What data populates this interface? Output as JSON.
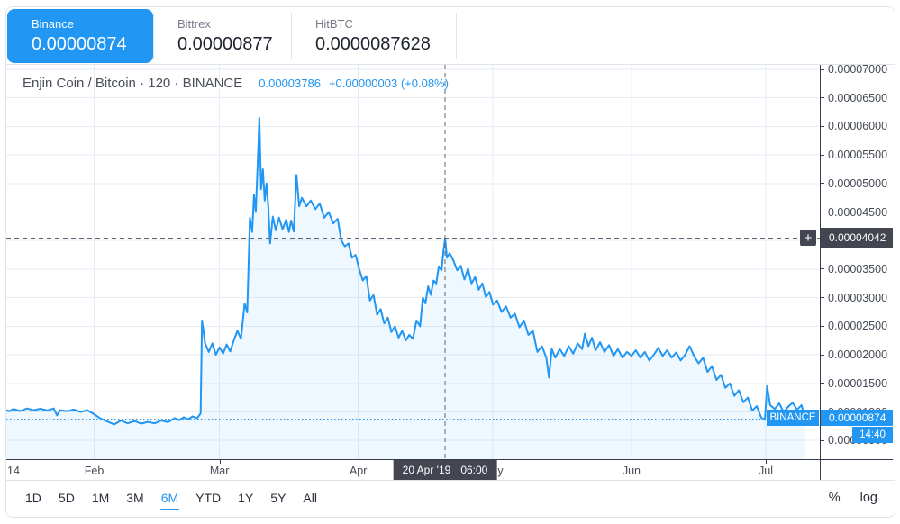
{
  "tabs": [
    {
      "name": "Binance",
      "price": "0.00000874",
      "active": true
    },
    {
      "name": "Bittrex",
      "price": "0.00000877",
      "active": false
    },
    {
      "name": "HitBTC",
      "price": "0.0000087628",
      "active": false
    }
  ],
  "header": {
    "title": "Enjin Coin / Bitcoin · 120 · BINANCE",
    "last_price": "0.00003786",
    "change": "+0.00000003 (+0.08%)"
  },
  "crosshair": {
    "price": "0.00004042",
    "date": "20 Apr '19",
    "time": "06:00",
    "plus": "+"
  },
  "last": {
    "exchange": "BINANCE",
    "price": "0.00000874",
    "time": "14:40"
  },
  "toolbar": {
    "ranges": [
      "1D",
      "5D",
      "1M",
      "3M",
      "6M",
      "YTD",
      "1Y",
      "5Y",
      "All"
    ],
    "active_range": "6M",
    "percent": "%",
    "log": "log"
  },
  "colors": {
    "accent_blue": "#2196f3",
    "area_fill": "rgba(33,150,243,0.07)",
    "grid": "#e6edf5",
    "crosshair_dash": "#62656e",
    "crosshair_label_bg": "#434651",
    "axis_line": "#363c4e",
    "axis_text": "#454a56"
  },
  "chart_data": {
    "type": "area",
    "title": "Enjin Coin / Bitcoin, 120-minute bars, BINANCE",
    "x_unit": "days since Jan 14 2019",
    "y_unit": "BTC (values stored in 1e-8 BTC)",
    "ylim_sats": [
      170,
      7080
    ],
    "yticks_sats": [
      7000,
      6500,
      6000,
      5500,
      5000,
      4500,
      4000,
      3500,
      3000,
      2500,
      2000,
      1500,
      1000,
      500
    ],
    "first_tick": {
      "label": "14",
      "day": 0
    },
    "months": [
      {
        "label": "Feb",
        "day": 18
      },
      {
        "label": "Mar",
        "day": 46
      },
      {
        "label": "Apr",
        "day": 77
      },
      {
        "label": "May",
        "day": 107
      },
      {
        "label": "Jun",
        "day": 138
      },
      {
        "label": "Jul",
        "day": 168
      }
    ],
    "current_price_sats": 874,
    "crosshair_point": {
      "day": 96.4,
      "sats": 4042
    },
    "points": [
      [
        -1.6,
        1030
      ],
      [
        -1,
        1010
      ],
      [
        0,
        1050
      ],
      [
        1.5,
        1015
      ],
      [
        3,
        1060
      ],
      [
        4.5,
        1030
      ],
      [
        6,
        1055
      ],
      [
        7.5,
        1025
      ],
      [
        9,
        1060
      ],
      [
        9.7,
        940
      ],
      [
        10.4,
        1030
      ],
      [
        12,
        1010
      ],
      [
        13.5,
        1040
      ],
      [
        15,
        1000
      ],
      [
        16.5,
        1030
      ],
      [
        18,
        960
      ],
      [
        19.5,
        880
      ],
      [
        21,
        830
      ],
      [
        22.5,
        780
      ],
      [
        24,
        850
      ],
      [
        25.5,
        800
      ],
      [
        27,
        840
      ],
      [
        28.5,
        795
      ],
      [
        30,
        825
      ],
      [
        31.5,
        800
      ],
      [
        33,
        850
      ],
      [
        34.5,
        820
      ],
      [
        36,
        890
      ],
      [
        37,
        855
      ],
      [
        38,
        905
      ],
      [
        39,
        870
      ],
      [
        40,
        920
      ],
      [
        41,
        890
      ],
      [
        41.8,
        975
      ],
      [
        42.1,
        2600
      ],
      [
        42.8,
        2200
      ],
      [
        43.6,
        2050
      ],
      [
        44.4,
        2200
      ],
      [
        45.2,
        2000
      ],
      [
        46,
        2130
      ],
      [
        46.8,
        2020
      ],
      [
        47.6,
        2180
      ],
      [
        48.4,
        2060
      ],
      [
        49.2,
        2250
      ],
      [
        50,
        2420
      ],
      [
        50.8,
        2280
      ],
      [
        51.6,
        2900
      ],
      [
        52.2,
        2740
      ],
      [
        52.8,
        4400
      ],
      [
        53.3,
        4150
      ],
      [
        53.7,
        4800
      ],
      [
        54.1,
        4500
      ],
      [
        54.5,
        5300
      ],
      [
        54.9,
        6150
      ],
      [
        55.3,
        4900
      ],
      [
        55.7,
        5250
      ],
      [
        56.1,
        4700
      ],
      [
        56.5,
        5000
      ],
      [
        56.9,
        4600
      ],
      [
        57.3,
        3950
      ],
      [
        57.9,
        4420
      ],
      [
        58.6,
        4180
      ],
      [
        59.3,
        4400
      ],
      [
        60.1,
        4200
      ],
      [
        60.9,
        4370
      ],
      [
        61.5,
        4150
      ],
      [
        62,
        4350
      ],
      [
        62.6,
        4160
      ],
      [
        63.2,
        5150
      ],
      [
        63.8,
        4600
      ],
      [
        64.4,
        4750
      ],
      [
        65.4,
        4600
      ],
      [
        66.4,
        4700
      ],
      [
        67.4,
        4550
      ],
      [
        68.4,
        4650
      ],
      [
        69.4,
        4400
      ],
      [
        70.4,
        4500
      ],
      [
        71.4,
        4300
      ],
      [
        72.4,
        4380
      ],
      [
        73.2,
        4000
      ],
      [
        74,
        3900
      ],
      [
        74.8,
        3950
      ],
      [
        75.6,
        3700
      ],
      [
        76.4,
        3750
      ],
      [
        77.2,
        3500
      ],
      [
        78,
        3300
      ],
      [
        78.8,
        3380
      ],
      [
        79.6,
        2950
      ],
      [
        80.4,
        3050
      ],
      [
        81.2,
        2700
      ],
      [
        82,
        2800
      ],
      [
        82.8,
        2550
      ],
      [
        83.6,
        2650
      ],
      [
        84.4,
        2400
      ],
      [
        85.2,
        2500
      ],
      [
        86,
        2300
      ],
      [
        86.8,
        2420
      ],
      [
        87.6,
        2250
      ],
      [
        88.4,
        2350
      ],
      [
        89.2,
        2280
      ],
      [
        90,
        2600
      ],
      [
        90.8,
        2500
      ],
      [
        91.4,
        3000
      ],
      [
        92,
        2900
      ],
      [
        92.6,
        3200
      ],
      [
        93.2,
        3050
      ],
      [
        93.8,
        3300
      ],
      [
        94.4,
        3250
      ],
      [
        95,
        3550
      ],
      [
        95.6,
        3480
      ],
      [
        96,
        3800
      ],
      [
        96.4,
        4040
      ],
      [
        96.8,
        3700
      ],
      [
        97.4,
        3780
      ],
      [
        98.3,
        3640
      ],
      [
        99.1,
        3480
      ],
      [
        99.9,
        3560
      ],
      [
        100.7,
        3320
      ],
      [
        101.5,
        3510
      ],
      [
        102.3,
        3250
      ],
      [
        103.1,
        3360
      ],
      [
        103.9,
        3140
      ],
      [
        104.7,
        3250
      ],
      [
        105.5,
        3010
      ],
      [
        106.3,
        3100
      ],
      [
        107.1,
        2880
      ],
      [
        108,
        2950
      ],
      [
        109,
        2750
      ],
      [
        110,
        2850
      ],
      [
        111,
        2650
      ],
      [
        112,
        2720
      ],
      [
        113,
        2480
      ],
      [
        114,
        2600
      ],
      [
        115,
        2350
      ],
      [
        116,
        2420
      ],
      [
        117,
        2050
      ],
      [
        118,
        2150
      ],
      [
        119,
        1950
      ],
      [
        119.6,
        1600
      ],
      [
        120.2,
        2100
      ],
      [
        121,
        1950
      ],
      [
        122,
        2100
      ],
      [
        123,
        1980
      ],
      [
        124,
        2150
      ],
      [
        125,
        2020
      ],
      [
        126,
        2200
      ],
      [
        127,
        2100
      ],
      [
        127.6,
        2370
      ],
      [
        128.4,
        2150
      ],
      [
        129.2,
        2300
      ],
      [
        130,
        2080
      ],
      [
        131,
        2220
      ],
      [
        132,
        2050
      ],
      [
        133,
        2170
      ],
      [
        134,
        1980
      ],
      [
        135,
        2100
      ],
      [
        136,
        1950
      ],
      [
        137,
        2050
      ],
      [
        138,
        1980
      ],
      [
        139,
        2080
      ],
      [
        140,
        1950
      ],
      [
        141,
        2050
      ],
      [
        142,
        1900
      ],
      [
        143,
        2000
      ],
      [
        144,
        2120
      ],
      [
        145,
        1980
      ],
      [
        146,
        2080
      ],
      [
        147,
        1950
      ],
      [
        148,
        2040
      ],
      [
        149,
        1900
      ],
      [
        150,
        2000
      ],
      [
        151,
        2150
      ],
      [
        152,
        1980
      ],
      [
        153,
        1850
      ],
      [
        154,
        1950
      ],
      [
        155,
        1700
      ],
      [
        156,
        1800
      ],
      [
        157,
        1560
      ],
      [
        158,
        1650
      ],
      [
        159,
        1420
      ],
      [
        160,
        1500
      ],
      [
        161,
        1280
      ],
      [
        162,
        1380
      ],
      [
        163,
        1170
      ],
      [
        164,
        1250
      ],
      [
        165,
        1020
      ],
      [
        166,
        1100
      ],
      [
        167,
        900
      ],
      [
        167.8,
        860
      ],
      [
        168.3,
        1450
      ],
      [
        169,
        1120
      ],
      [
        170,
        1050
      ],
      [
        171,
        1150
      ],
      [
        172,
        1000
      ],
      [
        173,
        1090
      ],
      [
        174,
        1160
      ],
      [
        175,
        1040
      ],
      [
        176,
        1120
      ],
      [
        176.8,
        874
      ]
    ]
  }
}
